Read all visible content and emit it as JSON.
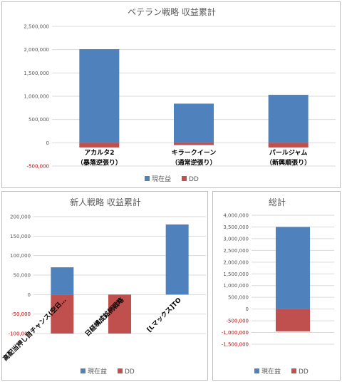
{
  "colors": {
    "positive": "#4f81bd",
    "dd": "#c0504d",
    "grid": "#d9d9d9",
    "axis_pos": "#595959",
    "axis_neg": "#c00000"
  },
  "chart_data": [
    {
      "id": "veteran",
      "type": "bar",
      "title": "ベテラン戦略 収益累計",
      "categories": [
        [
          "アカルタ2",
          "（暴落逆張り）"
        ],
        [
          "キラークイーン",
          "（通常逆張り）"
        ],
        [
          "パールジャム",
          "（新興順張り）"
        ]
      ],
      "series": [
        {
          "name": "現在益",
          "values": [
            2010000,
            840000,
            1030000
          ]
        },
        {
          "name": "DD",
          "values": [
            -100000,
            -50000,
            -100000
          ]
        }
      ],
      "ylim": [
        -500000,
        2500000
      ],
      "yticks": [
        2500000,
        2000000,
        1500000,
        1000000,
        500000,
        0,
        -500000
      ],
      "ytick_labels": [
        "2,500,000",
        "2,000,000",
        "1,500,000",
        "1,000,000",
        "500,000",
        "0",
        "-500,000"
      ],
      "grid": true,
      "legend": "bottom",
      "xlabel": "",
      "ylabel": ""
    },
    {
      "id": "rookie",
      "type": "bar",
      "title": "新人戦略 収益累計",
      "categories": [
        [
          "高配当押し目チャンス(空日…"
        ],
        [
          "日経構成銘柄戦略"
        ],
        [
          "[Lマックス]TO"
        ]
      ],
      "series": [
        {
          "name": "現在益",
          "values": [
            70000,
            0,
            180000
          ]
        },
        {
          "name": "DD",
          "values": [
            -100000,
            -100000,
            0
          ]
        }
      ],
      "ylim": [
        -100000,
        200000
      ],
      "yticks": [
        200000,
        150000,
        100000,
        50000,
        0,
        -50000,
        -100000
      ],
      "ytick_labels": [
        "200,000",
        "150,000",
        "100,000",
        "50,000",
        "0",
        "-50,000",
        "-100,000"
      ],
      "grid": true,
      "legend": "bottom",
      "xlabel": "",
      "ylabel": ""
    },
    {
      "id": "total",
      "type": "bar",
      "title": "総計",
      "categories": [
        [
          ""
        ]
      ],
      "series": [
        {
          "name": "現在益",
          "values": [
            3500000
          ]
        },
        {
          "name": "DD",
          "values": [
            -950000
          ]
        }
      ],
      "ylim": [
        -1500000,
        4000000
      ],
      "yticks": [
        4000000,
        3500000,
        3000000,
        2500000,
        2000000,
        1500000,
        1000000,
        500000,
        0,
        -500000,
        -1000000,
        -1500000
      ],
      "ytick_labels": [
        "4,000,000",
        "3,500,000",
        "3,000,000",
        "2,500,000",
        "2,000,000",
        "1,500,000",
        "1,000,000",
        "500,000",
        "0",
        "-500,000",
        "-1,000,000",
        "-1,500,000"
      ],
      "grid": true,
      "legend": "bottom",
      "xlabel": "",
      "ylabel": ""
    }
  ]
}
